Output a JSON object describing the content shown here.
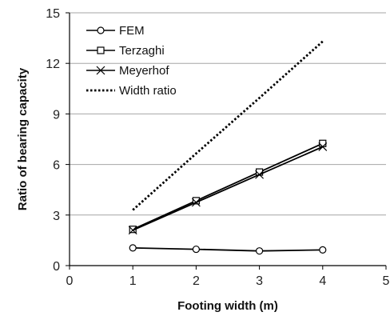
{
  "chart_data": {
    "type": "line",
    "xlabel": "Footing width (m)",
    "ylabel": "Ratio of bearing capacity",
    "xlim": [
      0,
      5
    ],
    "ylim": [
      0,
      15
    ],
    "xticks": [
      "0",
      "1",
      "2",
      "3",
      "4",
      "5"
    ],
    "yticks": [
      "0",
      "3",
      "6",
      "9",
      "12",
      "15"
    ],
    "grid": "horizontal",
    "legend_position": "top-left",
    "series": [
      {
        "name": "FEM",
        "marker": "circle",
        "line_style": "solid",
        "color": "#000000",
        "x": [
          1,
          2,
          3,
          4
        ],
        "y": [
          1.05,
          0.97,
          0.87,
          0.93
        ]
      },
      {
        "name": "Terzaghi",
        "marker": "square",
        "line_style": "solid",
        "color": "#000000",
        "x": [
          1,
          2,
          3,
          4
        ],
        "y": [
          2.15,
          3.85,
          5.55,
          7.25
        ]
      },
      {
        "name": "Meyerhof",
        "marker": "x",
        "line_style": "solid",
        "color": "#000000",
        "x": [
          1,
          2,
          3,
          4
        ],
        "y": [
          2.1,
          3.75,
          5.4,
          7.05
        ]
      },
      {
        "name": "Width ratio",
        "marker": "none",
        "line_style": "dotted",
        "color": "#000000",
        "x": [
          1,
          2,
          3,
          4
        ],
        "y": [
          3.3,
          6.65,
          9.95,
          13.3
        ]
      }
    ]
  }
}
